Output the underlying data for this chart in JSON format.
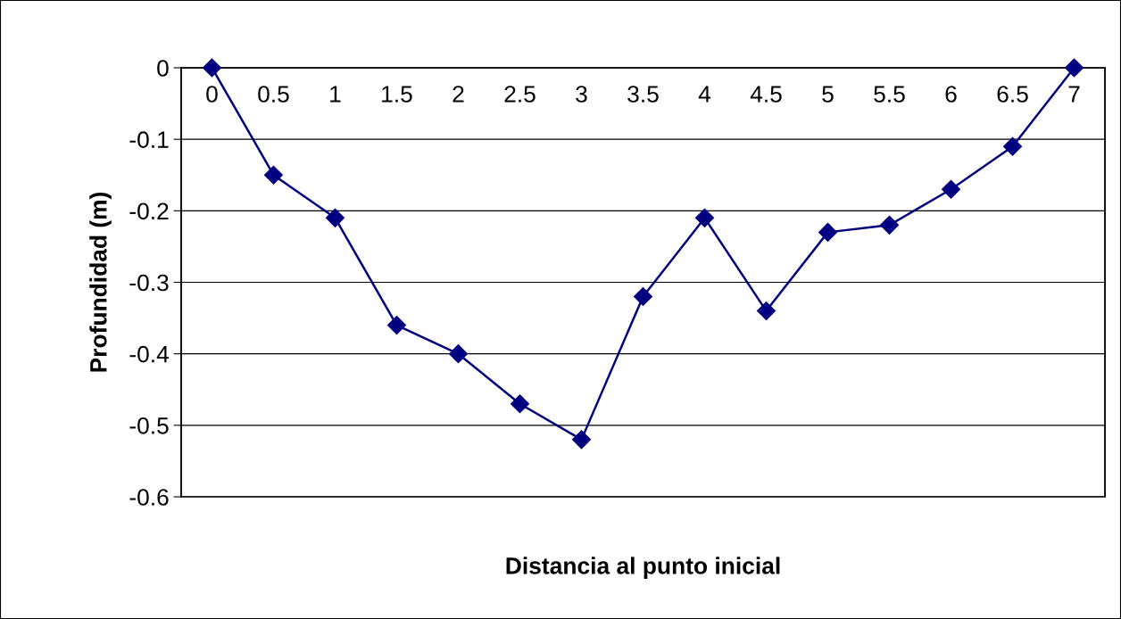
{
  "chart_data": {
    "type": "line",
    "xlabel": "Distancia al punto inicial",
    "ylabel": "Profundidad (m)",
    "categories": [
      "0",
      "0.5",
      "1",
      "1.5",
      "2",
      "2.5",
      "3",
      "3.5",
      "4",
      "4.5",
      "5",
      "5.5",
      "6",
      "6.5",
      "7"
    ],
    "series": [
      {
        "color": "#000080",
        "values": [
          0,
          -0.15,
          -0.21,
          -0.36,
          -0.4,
          -0.47,
          -0.52,
          -0.32,
          -0.21,
          -0.34,
          -0.23,
          -0.22,
          -0.17,
          -0.11,
          0
        ]
      }
    ],
    "ylim": [
      -0.6,
      0
    ],
    "yticks": [
      -0.6,
      -0.5,
      -0.4,
      -0.3,
      -0.2,
      -0.1,
      0
    ],
    "grid": "y",
    "marker": "diamond",
    "line_style": "solid"
  }
}
